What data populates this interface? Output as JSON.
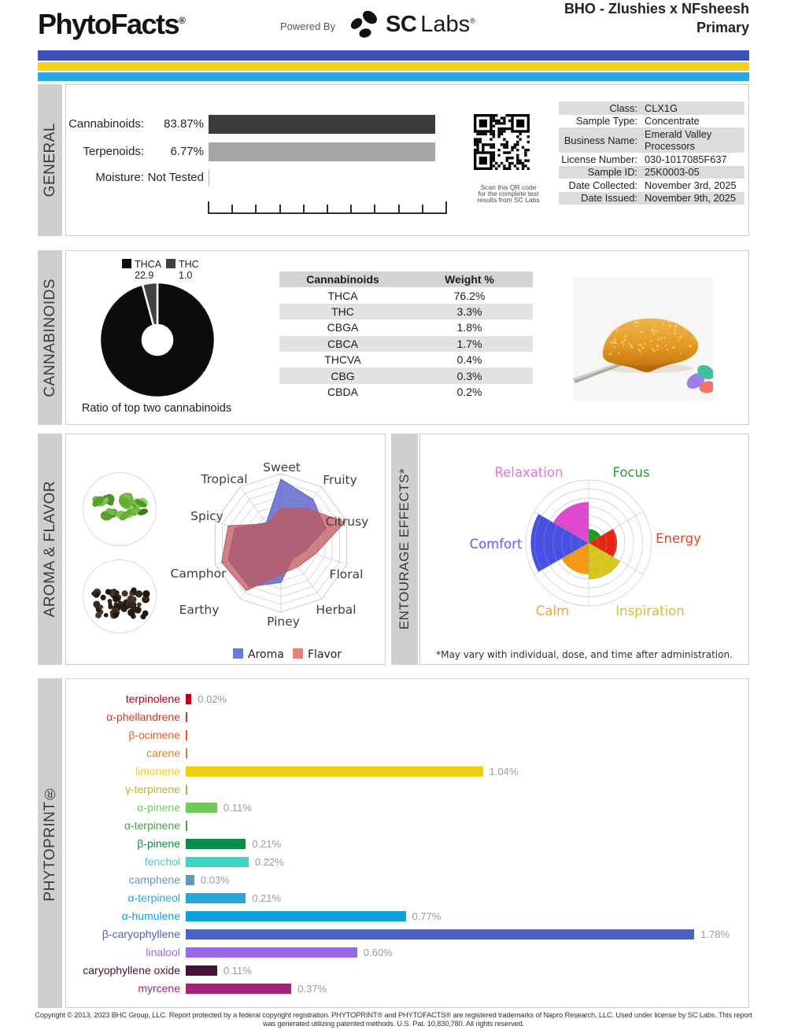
{
  "header": {
    "brand": "PhytoFacts",
    "registered_mark": "®",
    "powered_by": "Powered By",
    "sc_wordmark_sc": "SC",
    "sc_wordmark_labs": "Labs",
    "sample_title_line1": "BHO - Zlushies x NFsheesh",
    "sample_title_line2": "Primary",
    "stripe_colors": [
      "#3f51b5",
      "#f5d21c",
      "#29a7e1"
    ]
  },
  "general": {
    "section_label": "GENERAL",
    "overview": [
      {
        "label": "Cannabinoids:",
        "value": "83.87%",
        "bar_color": "#3b3b3b"
      },
      {
        "label": "Terpenoids:",
        "value": "6.77%",
        "bar_color": "#a6a6a6"
      },
      {
        "label": "Moisture:",
        "value": "Not Tested",
        "bar_color": null
      }
    ],
    "qr_caption_lines": [
      "Scan this QR code",
      "for the complete test",
      "results from SC Labs"
    ],
    "info_rows": [
      {
        "label": "Class:",
        "value": "CLX1G"
      },
      {
        "label": "Sample Type:",
        "value": "Concentrate"
      },
      {
        "label": "Business Name:",
        "value": "Emerald Valley Processors"
      },
      {
        "label": "License Number:",
        "value": "030-1017085F637"
      },
      {
        "label": "Sample ID:",
        "value": "25K0003-05"
      },
      {
        "label": "Date Collected:",
        "value": "November 3rd, 2025"
      },
      {
        "label": "Date Issued:",
        "value": "November 9th, 2025"
      }
    ]
  },
  "cannabinoids": {
    "section_label": "CANNABINOIDS",
    "donut_caption": "Ratio of top two cannabinoids",
    "legend": [
      {
        "label": "THCA",
        "value": "22.9",
        "color": "#0c0c0c"
      },
      {
        "label": "THC",
        "value": "1.0",
        "color": "#414141"
      }
    ],
    "table_headers": [
      "Cannabinoids",
      "Weight %"
    ],
    "table_rows": [
      [
        "THCA",
        "76.2%"
      ],
      [
        "THC",
        "3.3%"
      ],
      [
        "CBGA",
        "1.8%"
      ],
      [
        "CBCA",
        "1.7%"
      ],
      [
        "THCVA",
        "0.4%"
      ],
      [
        "CBG",
        "0.3%"
      ],
      [
        "CBDA",
        "0.2%"
      ]
    ]
  },
  "aroma_flavor": {
    "section_label": "AROMA & FLAVOR",
    "legend": [
      {
        "label": "Aroma",
        "color": "#7377d4"
      },
      {
        "label": "Flavor",
        "color": "#e4827e"
      }
    ]
  },
  "entourage": {
    "section_label": "ENTOURAGE EFFECTS*",
    "note": "*May vary with individual, dose, and time after administration."
  },
  "phytoprint": {
    "section_label": "PHYTOPRINT®"
  },
  "footer": {
    "line1": "Copyright © 2013, 2023 BHC Group, LLC. Report protected by a federal copyright registration. PHYTOPRINT® and PHYTOFACTS® are registered trademarks of Napro Research, LLC. Used under license by SC Labs. This report",
    "line2": "was generated utilizing patented methods. U.S. Pat. 10,830,780. All rights reserved."
  },
  "chart_data": [
    {
      "id": "general_overview",
      "type": "bar",
      "categories": [
        "Cannabinoids",
        "Terpenoids",
        "Moisture"
      ],
      "values": [
        83.87,
        6.77,
        null
      ],
      "displays": [
        "83.87%",
        "6.77%",
        "Not Tested"
      ]
    },
    {
      "id": "ratio_donut",
      "type": "pie",
      "labels": [
        "THCA",
        "THC"
      ],
      "values": [
        22.9,
        1.0
      ],
      "colors": [
        "#0c0c0c",
        "#414141"
      ],
      "title": "Ratio of top two cannabinoids"
    },
    {
      "id": "cannabinoid_table",
      "type": "table",
      "headers": [
        "Cannabinoids",
        "Weight %"
      ],
      "rows": [
        [
          "THCA",
          "76.2%"
        ],
        [
          "THC",
          "3.3%"
        ],
        [
          "CBGA",
          "1.8%"
        ],
        [
          "CBCA",
          "1.7%"
        ],
        [
          "THCVA",
          "0.4%"
        ],
        [
          "CBG",
          "0.3%"
        ],
        [
          "CBDA",
          "0.2%"
        ]
      ]
    },
    {
      "id": "aroma_radar",
      "type": "radar",
      "rings": 9,
      "scale": [
        0,
        1
      ],
      "axes": [
        "Sweet",
        "Fruity",
        "Citrusy",
        "Floral",
        "Herbal",
        "Piney",
        "Earthy",
        "Camphor",
        "Spicy",
        "Tropical"
      ],
      "series": [
        {
          "name": "Aroma",
          "color": "#5a5fc8",
          "values": [
            0.92,
            0.78,
            0.68,
            0.37,
            0.28,
            0.57,
            0.78,
            0.8,
            0.7,
            0.36
          ]
        },
        {
          "name": "Flavor",
          "color": "#c25858",
          "values": [
            0.5,
            0.62,
            0.97,
            0.52,
            0.42,
            0.45,
            0.85,
            0.9,
            0.8,
            0.34
          ]
        }
      ]
    },
    {
      "id": "entourage_polar",
      "type": "polar_sectors",
      "rings": 7,
      "scale": [
        0,
        1
      ],
      "sectors": [
        {
          "label": "Focus",
          "value": 0.22,
          "color": "#17a017",
          "label_color": "#2f9e2f"
        },
        {
          "label": "Energy",
          "value": 0.45,
          "color": "#e8250f",
          "label_color": "#ef4023"
        },
        {
          "label": "Inspiration",
          "value": 0.58,
          "color": "#d9c71d",
          "label_color": "#cfc32b"
        },
        {
          "label": "Calm",
          "value": 0.5,
          "color": "#f79a12",
          "label_color": "#f9a143"
        },
        {
          "label": "Comfort",
          "value": 0.92,
          "color": "#4850e4",
          "label_color": "#5d5de8"
        },
        {
          "label": "Relaxation",
          "value": 0.65,
          "color": "#e046cf",
          "label_color": "#e873d8"
        }
      ],
      "note": "*May vary with individual, dose, and time after administration."
    },
    {
      "id": "terpene_bars",
      "type": "bar",
      "unit": "%",
      "items": [
        {
          "name": "terpinolene",
          "display": "0.02%",
          "value": 0.02,
          "color": "#b50017"
        },
        {
          "name": "α-phellandrene",
          "display": "",
          "value": null,
          "color": "#e5311f"
        },
        {
          "name": "β-ocimene",
          "display": "",
          "value": null,
          "color": "#f4581f"
        },
        {
          "name": "carene",
          "display": "",
          "value": null,
          "color": "#df7f1f"
        },
        {
          "name": "limonene",
          "display": "1.04%",
          "value": 1.04,
          "color": "#f2cd0f"
        },
        {
          "name": "γ-terpinene",
          "display": "",
          "value": null,
          "color": "#b4b928"
        },
        {
          "name": "α-pinene",
          "display": "0.11%",
          "value": 0.11,
          "color": "#72c95b"
        },
        {
          "name": "α-terpinene",
          "display": "",
          "value": null,
          "color": "#3da63d"
        },
        {
          "name": "β-pinene",
          "display": "0.21%",
          "value": 0.21,
          "color": "#0c8c49"
        },
        {
          "name": "fenchol",
          "display": "0.22%",
          "value": 0.22,
          "color": "#3ed3c2"
        },
        {
          "name": "camphene",
          "display": "0.03%",
          "value": 0.03,
          "color": "#6898ad"
        },
        {
          "name": "α-terpineol",
          "display": "0.21%",
          "value": 0.21,
          "color": "#25a8d8"
        },
        {
          "name": "α-humulene",
          "display": "0.77%",
          "value": 0.77,
          "color": "#0d9ee0"
        },
        {
          "name": "β-caryophyllene",
          "display": "1.78%",
          "value": 1.78,
          "color": "#4a63c8"
        },
        {
          "name": "linalool",
          "display": "0.60%",
          "value": 0.6,
          "color": "#9668e6"
        },
        {
          "name": "caryophyllene oxide",
          "display": "0.11%",
          "value": 0.11,
          "color": "#451138"
        },
        {
          "name": "myrcene",
          "display": "0.37%",
          "value": 0.37,
          "color": "#a62478"
        }
      ]
    }
  ]
}
